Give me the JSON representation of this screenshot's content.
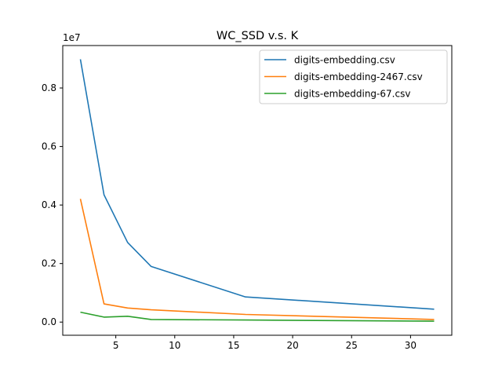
{
  "chart_data": {
    "type": "line",
    "title": "WC_SSD v.s. K",
    "xlabel": "",
    "ylabel": "",
    "y_offset_label": "1e7",
    "xlim": [
      0.5,
      33.5
    ],
    "ylim": [
      -0.045,
      0.945
    ],
    "x_ticks": [
      5,
      10,
      15,
      20,
      25,
      30
    ],
    "y_ticks": [
      0.0,
      0.2,
      0.4,
      0.6,
      0.8
    ],
    "x_tick_labels": [
      "5",
      "10",
      "15",
      "20",
      "25",
      "30"
    ],
    "y_tick_labels": [
      "0.0",
      "0.2",
      "0.4",
      "0.6",
      "0.8"
    ],
    "grid": false,
    "legend_position": "upper right",
    "x": [
      2,
      4,
      6,
      8,
      16,
      32
    ],
    "series": [
      {
        "name": "digits-embedding.csv",
        "color": "#1f77b4",
        "values": [
          0.898,
          0.435,
          0.272,
          0.19,
          0.086,
          0.044
        ]
      },
      {
        "name": "digits-embedding-2467.csv",
        "color": "#ff7f0e",
        "values": [
          0.421,
          0.062,
          0.048,
          0.042,
          0.026,
          0.009
        ]
      },
      {
        "name": "digits-embedding-67.csv",
        "color": "#2ca02c",
        "values": [
          0.034,
          0.017,
          0.02,
          0.009,
          0.007,
          0.003
        ]
      }
    ]
  }
}
